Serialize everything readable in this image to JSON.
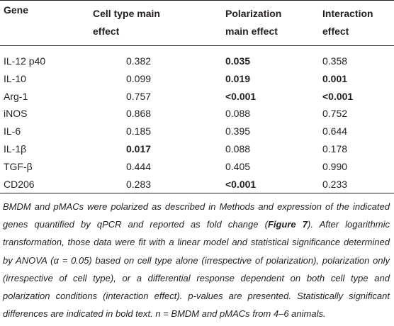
{
  "table": {
    "header": [
      "Gene",
      "Cell type main effect",
      "Polarization main effect",
      "Interaction effect"
    ],
    "rows": [
      [
        {
          "text": "IL-12 p40",
          "bold": false
        },
        {
          "text": "0.382",
          "bold": false
        },
        {
          "text": "0.035",
          "bold": true
        },
        {
          "text": "0.358",
          "bold": false
        }
      ],
      [
        {
          "text": "IL-10",
          "bold": false
        },
        {
          "text": "0.099",
          "bold": false
        },
        {
          "text": "0.019",
          "bold": true
        },
        {
          "text": "0.001",
          "bold": true
        }
      ],
      [
        {
          "text": "Arg-1",
          "bold": false
        },
        {
          "text": "0.757",
          "bold": false
        },
        {
          "text": "<0.001",
          "bold": true
        },
        {
          "text": "<0.001",
          "bold": true
        }
      ],
      [
        {
          "text": "iNOS",
          "bold": false
        },
        {
          "text": "0.868",
          "bold": false
        },
        {
          "text": "0.088",
          "bold": false
        },
        {
          "text": "0.752",
          "bold": false
        }
      ],
      [
        {
          "text": "IL-6",
          "bold": false
        },
        {
          "text": "0.185",
          "bold": false
        },
        {
          "text": "0.395",
          "bold": false
        },
        {
          "text": "0.644",
          "bold": false
        }
      ],
      [
        {
          "text": "IL-1β",
          "bold": false
        },
        {
          "text": "0.017",
          "bold": true
        },
        {
          "text": "0.088",
          "bold": false
        },
        {
          "text": "0.178",
          "bold": false
        }
      ],
      [
        {
          "text": "TGF-β",
          "bold": false
        },
        {
          "text": "0.444",
          "bold": false
        },
        {
          "text": "0.405",
          "bold": false
        },
        {
          "text": "0.990",
          "bold": false
        }
      ],
      [
        {
          "text": "CD206",
          "bold": false
        },
        {
          "text": "0.283",
          "bold": false
        },
        {
          "text": "<0.001",
          "bold": true
        },
        {
          "text": "0.233",
          "bold": false
        }
      ]
    ]
  },
  "caption": [
    {
      "text": "BMDM and pMACs were polarized as described in Methods and expression of the indicated genes quantified by qPCR and reported as fold change (",
      "bold": false
    },
    {
      "text": "Figure 7",
      "bold": true
    },
    {
      "text": "). After logarithmic transformation, those data were fit with a linear model and statistical significance determined by ANOVA (α = 0.05) based on cell type alone (irrespective of polarization), polarization only (irrespective of cell type), or a differential response dependent on both cell type and polarization conditions (interaction effect). p-values are presented. Statistically significant differences are indicated in bold text. n = BMDM and pMACs from 4–6 animals.",
      "bold": false
    }
  ]
}
